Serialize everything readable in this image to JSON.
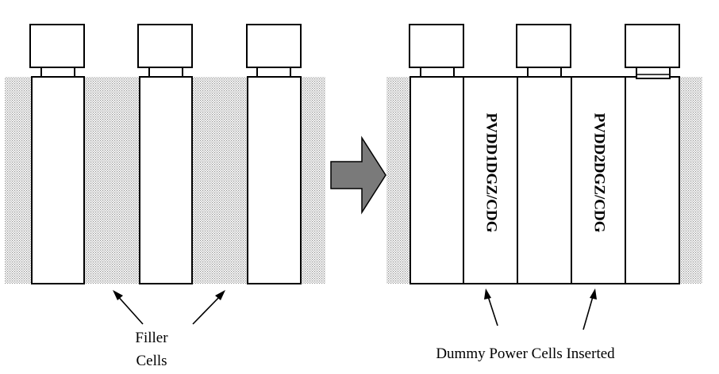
{
  "left_panel": {
    "filler_label_line1": "Filler",
    "filler_label_line2": "Cells"
  },
  "right_panel": {
    "dummy_cell_1_label": "PVDD1DGZ/CDG",
    "dummy_cell_2_label": "PVDD2DGZ/CDG",
    "caption": "Dummy Power Cells Inserted"
  },
  "colors": {
    "arrow_fill": "#7a7a7a",
    "filler_dots": "#9a9a9a"
  }
}
